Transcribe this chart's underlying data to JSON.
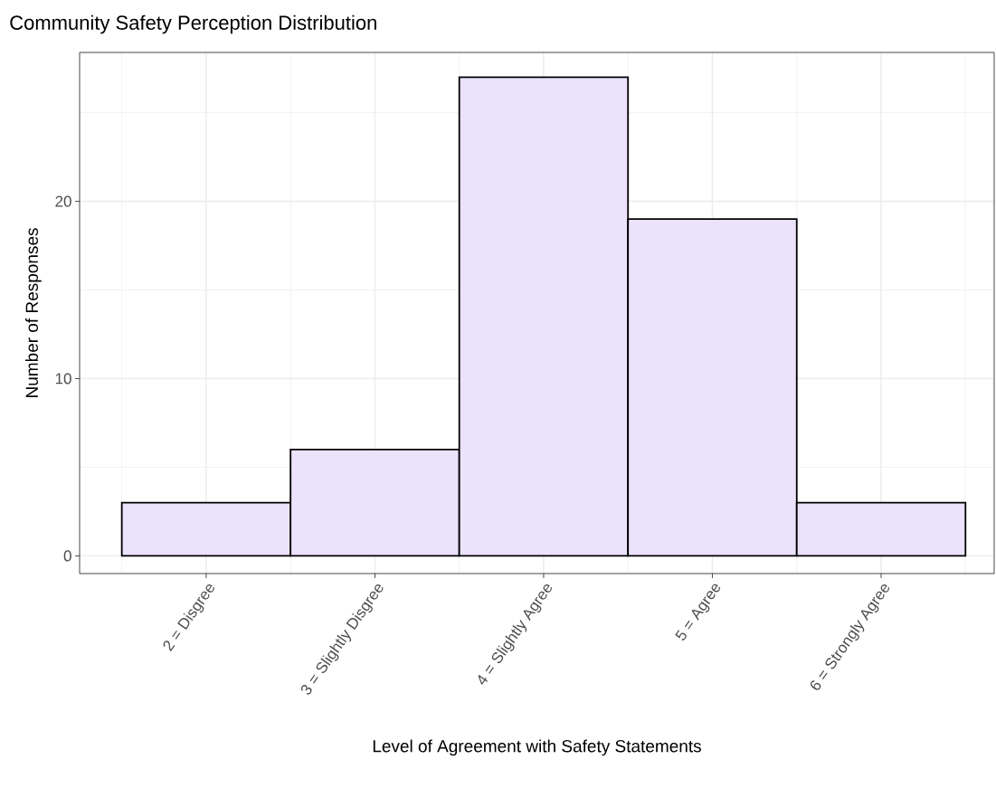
{
  "chart_data": {
    "type": "bar",
    "title": "Community Safety Perception Distribution",
    "xlabel": "Level of Agreement with Safety Statements",
    "ylabel": "Number of Responses",
    "categories": [
      "2 = Disgree",
      "3 = Slightly Disgree",
      "4 = Slightly Agree",
      "5 = Agree",
      "6 = Strongly Agree"
    ],
    "values": [
      3,
      6,
      27,
      19,
      3
    ],
    "color": "#ebe2fc",
    "ylim": [
      -1.0,
      28.4
    ],
    "yticks": [
      0,
      10,
      20
    ],
    "grid": true
  }
}
